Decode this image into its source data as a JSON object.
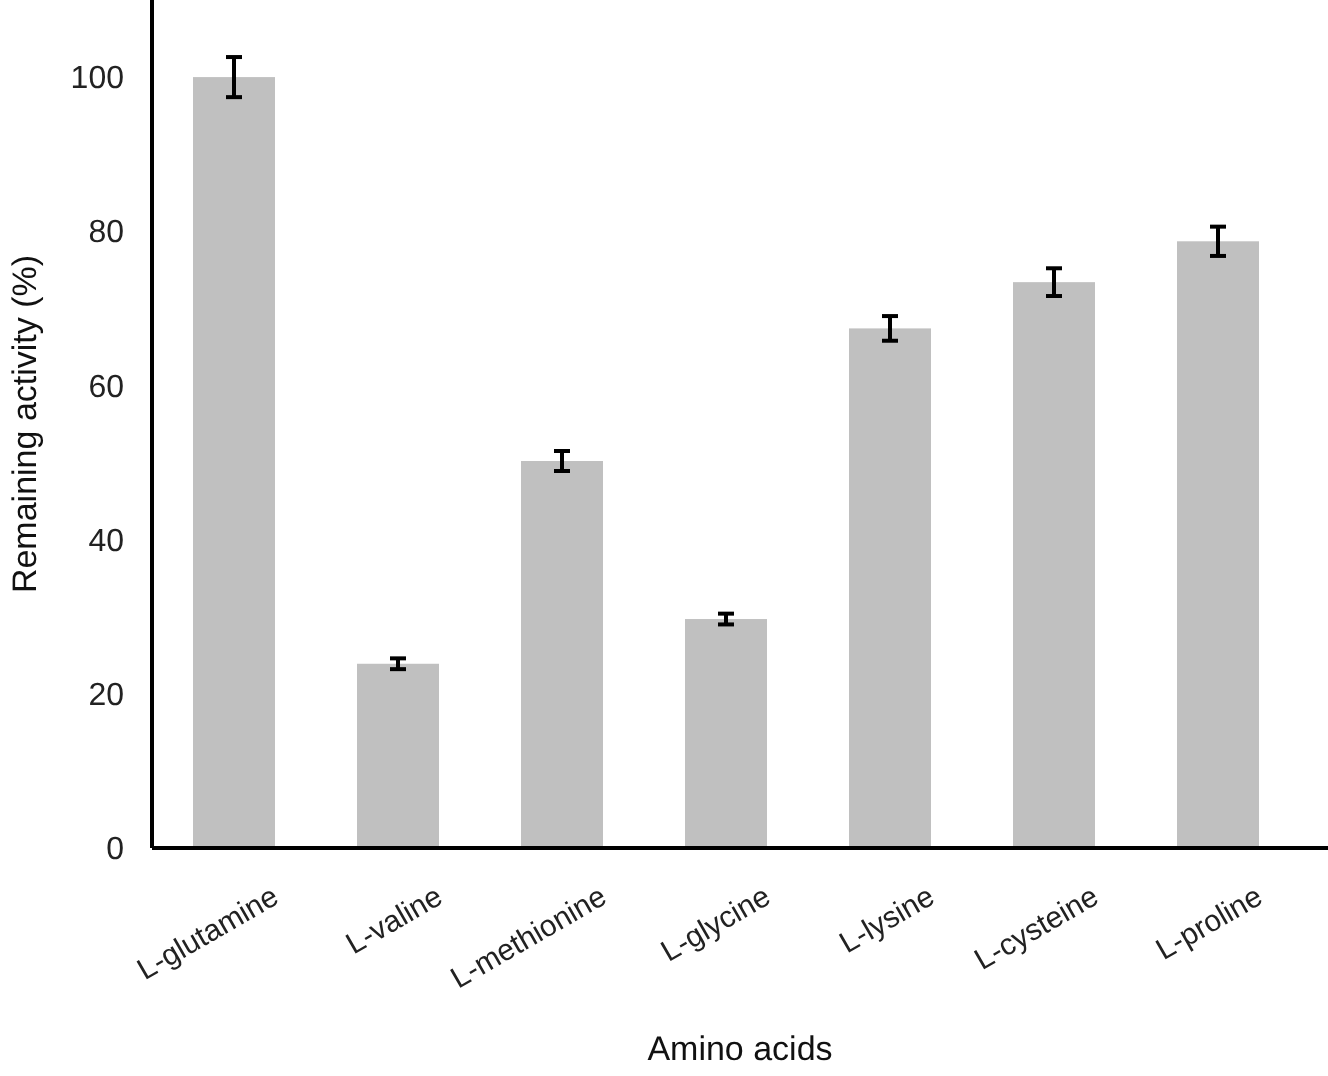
{
  "chart_data": {
    "type": "bar",
    "xlabel": "Amino acids",
    "ylabel": "Remaining activity (%)",
    "categories": [
      "L-glutamine",
      "L-valine",
      "L-methionine",
      "L-glycine",
      "L-lysine",
      "L-cysteine",
      "L-proline"
    ],
    "values": [
      100,
      23.9,
      50.2,
      29.7,
      67.4,
      73.4,
      78.7
    ],
    "errors": [
      2.6,
      0.7,
      1.3,
      0.7,
      1.6,
      1.8,
      1.9
    ],
    "color": "#c0c0c0",
    "ylim": [
      0,
      110
    ],
    "yticks": [
      0,
      20,
      40,
      60,
      80,
      100
    ],
    "grid": false
  }
}
